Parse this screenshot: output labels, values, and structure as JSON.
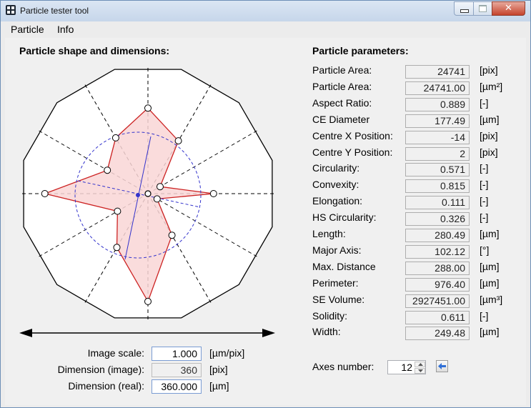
{
  "window": {
    "title": "Particle tester tool",
    "icon": "app-grid-icon",
    "controls": [
      "minimize-icon",
      "maximize-icon",
      "close-icon"
    ]
  },
  "menu": [
    "Particle",
    "Info"
  ],
  "shape_panel": {
    "header": "Particle shape and dimensions:",
    "image_scale_label": "Image scale:",
    "image_scale_value": "1.000",
    "image_scale_unit": "[µm/pix]",
    "dimension_image_label": "Dimension (image):",
    "dimension_image_value": "360",
    "dimension_image_unit": "[pix]",
    "dimension_real_label": "Dimension (real):",
    "dimension_real_value": "360.000",
    "dimension_real_unit": "[µm]",
    "radar": {
      "axes_count": 12,
      "shape_radii_fraction": [
        0.73,
        0.52,
        0.12,
        0.56,
        0.09,
        0.41,
        0.92,
        0.53,
        0.3,
        0.88,
        0.4,
        0.55
      ],
      "shape_line_color": "#cc2222",
      "shape_fill_color": "#f9d6d6",
      "circle_color": "#3333cc"
    }
  },
  "params_panel": {
    "header": "Particle parameters:",
    "rows": [
      {
        "label": "Particle Area:",
        "value": "24741",
        "unit": "[pix]"
      },
      {
        "label": "Particle Area:",
        "value": "24741.00",
        "unit": "[µm²]"
      },
      {
        "label": "Aspect Ratio:",
        "value": "0.889",
        "unit": "[-]"
      },
      {
        "label": "CE Diameter",
        "value": "177.49",
        "unit": "[µm]"
      },
      {
        "label": "Centre X Position:",
        "value": "-14",
        "unit": "[pix]"
      },
      {
        "label": "Centre Y Position:",
        "value": "2",
        "unit": "[pix]"
      },
      {
        "label": "Circularity:",
        "value": "0.571",
        "unit": "[-]"
      },
      {
        "label": "Convexity:",
        "value": "0.815",
        "unit": "[-]"
      },
      {
        "label": "Elongation:",
        "value": "0.111",
        "unit": "[-]"
      },
      {
        "label": "HS Circularity:",
        "value": "0.326",
        "unit": "[-]"
      },
      {
        "label": "Length:",
        "value": "280.49",
        "unit": "[µm]"
      },
      {
        "label": "Major Axis:",
        "value": "102.12",
        "unit": "[°]"
      },
      {
        "label": "Max. Distance",
        "value": "288.00",
        "unit": "[µm]"
      },
      {
        "label": "Perimeter:",
        "value": "976.40",
        "unit": "[µm]"
      },
      {
        "label": "SE Volume:",
        "value": "2927451.00",
        "unit": "[µm³]"
      },
      {
        "label": "Solidity:",
        "value": "0.611",
        "unit": "[-]"
      },
      {
        "label": "Width:",
        "value": "249.48",
        "unit": "[µm]"
      }
    ],
    "axes_number_label": "Axes number:",
    "axes_number_value": "12",
    "apply_icon": "arrow-left-icon"
  }
}
